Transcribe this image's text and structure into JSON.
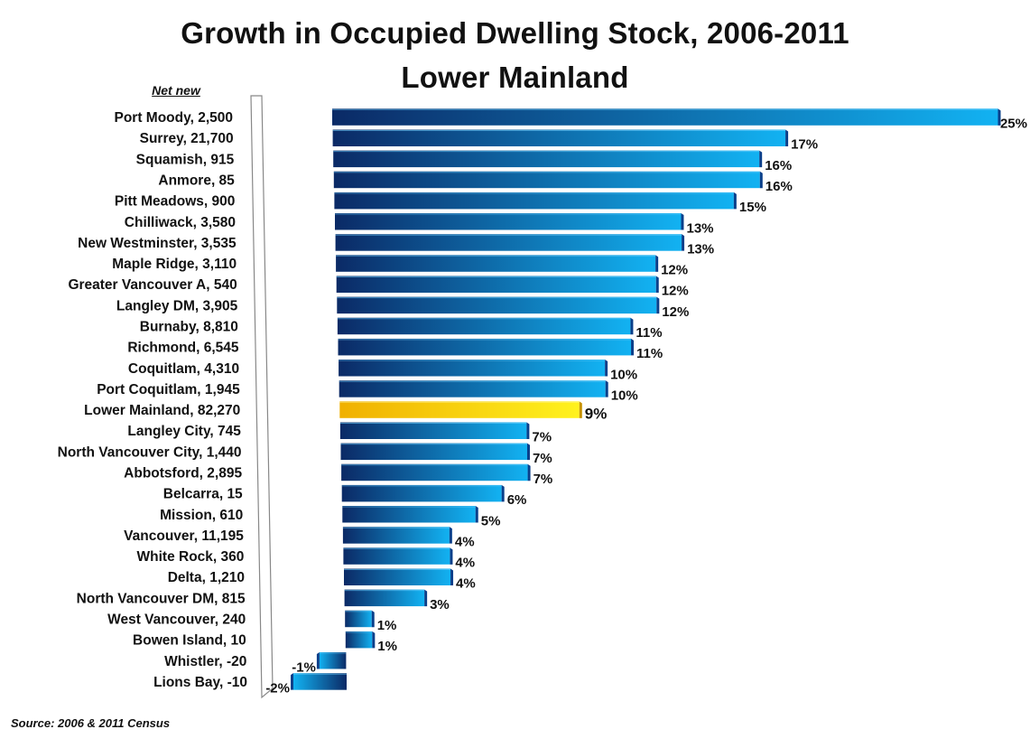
{
  "chart_data": {
    "type": "bar",
    "orientation": "horizontal",
    "title": "Growth in Occupied Dwelling Stock, 2006-2011",
    "subtitle": "Lower Mainland",
    "label_header": "Net new",
    "source": "Source: 2006 & 2011 Census",
    "categories": [
      "Port Moody, 2,500",
      "Surrey, 21,700",
      "Squamish, 915",
      "Anmore, 85",
      "Pitt Meadows, 900",
      "Chilliwack, 3,580",
      "New Westminster, 3,535",
      "Maple Ridge, 3,110",
      "Greater Vancouver A, 540",
      "Langley DM, 3,905",
      "Burnaby, 8,810",
      "Richmond, 6,545",
      "Coquitlam, 4,310",
      "Port Coquitlam, 1,945",
      "Lower Mainland, 82,270",
      "Langley City, 745",
      "North Vancouver City, 1,440",
      "Abbotsford, 2,895",
      "Belcarra, 15",
      "Mission, 610",
      "Vancouver, 11,195",
      "White Rock, 360",
      "Delta, 1,210",
      "North Vancouver DM, 815",
      "West Vancouver, 240",
      "Bowen Island, 10",
      "Whistler, -20",
      "Lions Bay, -10"
    ],
    "values": [
      25,
      17,
      16,
      16,
      15,
      13,
      13,
      12,
      12,
      12,
      11,
      11,
      10,
      10,
      9,
      7,
      7,
      7,
      6,
      5,
      4,
      4,
      4,
      3,
      1,
      1,
      -1,
      -2
    ],
    "value_labels": [
      "25%",
      "17%",
      "16%",
      "16%",
      "15%",
      "13%",
      "13%",
      "12%",
      "12%",
      "12%",
      "11%",
      "11%",
      "10%",
      "10%",
      "9%",
      "7%",
      "7%",
      "7%",
      "6%",
      "5%",
      "4%",
      "4%",
      "4%",
      "3%",
      "1%",
      "1%",
      "-1%",
      "-2%"
    ],
    "highlight": "Lower Mainland, 82,270",
    "xlabel": "",
    "ylabel": "",
    "xlim": [
      -2,
      25
    ],
    "colors": {
      "bar_start": "#0b2a66",
      "bar_end": "#12b2f2",
      "highlight_start": "#f0b000",
      "highlight_end": "#fff21e",
      "axis": "#888888"
    }
  }
}
